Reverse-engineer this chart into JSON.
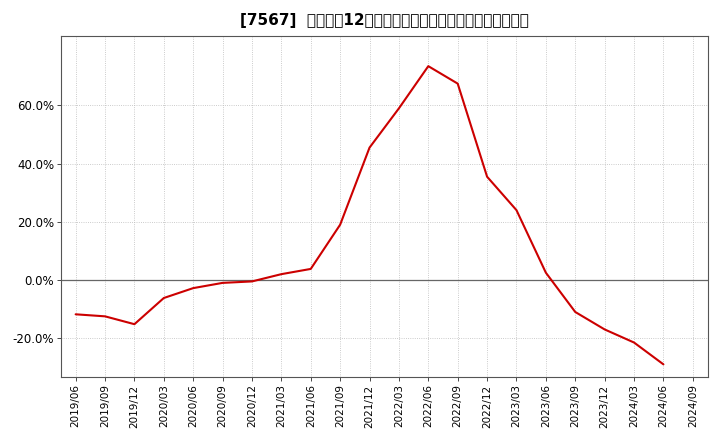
{
  "title": "[7567]  売上高の12か月移動合計の対前年同期増減率の推移",
  "line_color": "#cc0000",
  "background_color": "#ffffff",
  "plot_bg_color": "#ffffff",
  "grid_color": "#bbbbbb",
  "zero_line_color": "#666666",
  "dates": [
    "2019/06",
    "2019/09",
    "2019/12",
    "2020/03",
    "2020/06",
    "2020/09",
    "2020/12",
    "2021/03",
    "2021/06",
    "2021/09",
    "2021/12",
    "2022/03",
    "2022/06",
    "2022/09",
    "2022/12",
    "2023/03",
    "2023/06",
    "2023/09",
    "2023/12",
    "2024/03",
    "2024/06"
  ],
  "values": [
    -0.118,
    -0.125,
    -0.152,
    -0.062,
    -0.028,
    -0.01,
    -0.005,
    0.02,
    0.038,
    0.19,
    0.455,
    0.59,
    0.735,
    0.675,
    0.355,
    0.24,
    0.025,
    -0.11,
    -0.17,
    -0.215,
    -0.29
  ],
  "xtick_labels": [
    "2019/06",
    "2019/09",
    "2019/12",
    "2020/03",
    "2020/06",
    "2020/09",
    "2020/12",
    "2021/03",
    "2021/06",
    "2021/09",
    "2021/12",
    "2022/03",
    "2022/06",
    "2022/09",
    "2022/12",
    "2023/03",
    "2023/06",
    "2023/09",
    "2023/12",
    "2024/03",
    "2024/06",
    "2024/09"
  ],
  "ytick_values": [
    -0.2,
    0.0,
    0.2,
    0.4,
    0.6
  ],
  "ytick_labels": [
    "-20.0%",
    "0.0%",
    "20.0%",
    "40.0%",
    "60.0%"
  ],
  "ylim": [
    -0.335,
    0.84
  ],
  "title_fontsize": 11,
  "tick_fontsize": 7.5,
  "ytick_fontsize": 8.5,
  "line_width": 1.5
}
